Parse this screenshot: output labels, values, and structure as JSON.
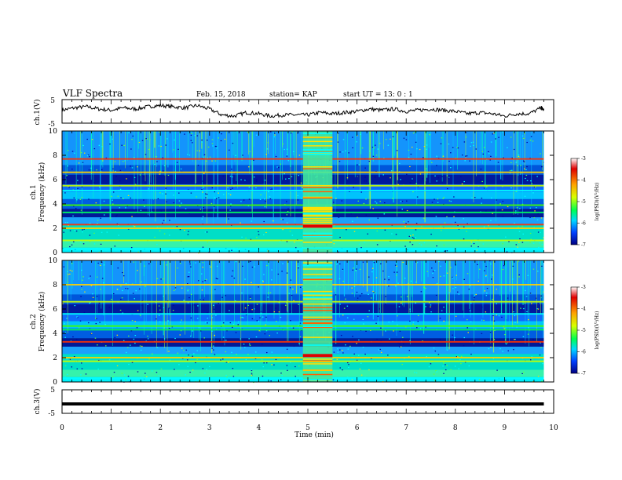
{
  "header": {
    "title": "VLF Spectra",
    "date": "Feb. 15, 2018",
    "station": "station= KAP",
    "start": "start  UT =   13: 0  : 1"
  },
  "colors": {
    "spectrum_scale": [
      "#00007a",
      "#0000ff",
      "#0080ff",
      "#00e0e0",
      "#00ff40",
      "#e0ff00",
      "#ffd000",
      "#ff4000",
      "#cc0000",
      "#ffffff"
    ]
  },
  "chart_data": [
    {
      "type": "line",
      "name": "ch1-voltage",
      "ylabel": "ch.1(V)",
      "ylim": [
        -5,
        5
      ],
      "yticks": [
        "5",
        "-5"
      ],
      "xlim": [
        0,
        10
      ],
      "note_values": "approximate fluctuating waveform around ~0 V",
      "x": [
        0,
        0.25,
        0.5,
        0.75,
        1.0,
        1.25,
        1.5,
        1.75,
        2.0,
        2.25,
        2.5,
        2.75,
        3.0,
        3.25,
        3.5,
        3.75,
        4.0,
        4.25,
        4.5,
        4.75,
        5.0,
        5.25,
        5.5,
        5.75,
        6.0,
        6.25,
        6.5,
        6.75,
        7.0,
        7.25,
        7.5,
        7.75,
        8.0,
        8.25,
        8.5,
        8.75,
        9.0,
        9.25,
        9.5,
        9.75,
        9.8
      ],
      "y": [
        0.5,
        1.5,
        2.0,
        1.0,
        0.5,
        1.5,
        1.0,
        2.0,
        2.5,
        2.0,
        1.5,
        2.5,
        1.0,
        -1.5,
        -2.0,
        -0.5,
        -1.0,
        -2.0,
        -1.5,
        -1.5,
        -1.5,
        -0.5,
        -1.0,
        -0.5,
        0.0,
        1.0,
        0.5,
        1.0,
        0.0,
        0.5,
        1.0,
        0.5,
        0.0,
        -1.0,
        -0.5,
        -1.0,
        -2.0,
        -1.0,
        -1.0,
        1.5,
        0.5
      ]
    },
    {
      "type": "heatmap",
      "name": "ch1-spectrogram",
      "ylabel_line1": "ch.1",
      "ylabel_line2": "Frequency (kHz)",
      "ylim": [
        0,
        10
      ],
      "yticks": [
        "0",
        "2",
        "4",
        "6",
        "8",
        "10"
      ],
      "xlim": [
        0,
        10
      ],
      "colorbar": {
        "label": "log(PSD)(V²/Hz)",
        "range": [
          -7,
          -3
        ],
        "ticks": [
          "-3",
          "-4",
          "-5",
          "-6",
          "-7"
        ]
      },
      "burst": {
        "x_start": 4.9,
        "x_end": 5.5
      },
      "bands_khz": [
        0.3,
        1.0,
        2.0,
        2.3,
        3.3,
        3.9,
        5.1,
        5.5,
        6.6,
        7.7
      ]
    },
    {
      "type": "heatmap",
      "name": "ch2-spectrogram",
      "ylabel_line1": "ch.2",
      "ylabel_line2": "Frequency (kHz)",
      "ylim": [
        0,
        10
      ],
      "yticks": [
        "0",
        "2",
        "4",
        "6",
        "8",
        "10"
      ],
      "xlim": [
        0,
        10
      ],
      "colorbar": {
        "label": "log(PSD)(V²/Hz)",
        "range": [
          -7,
          -3
        ],
        "ticks": [
          "-3",
          "-4",
          "-5",
          "-6",
          "-7"
        ]
      },
      "burst": {
        "x_start": 4.9,
        "x_end": 5.5
      },
      "bands_khz": [
        0.3,
        1.7,
        2.0,
        3.3,
        4.3,
        4.6,
        5.6,
        6.6,
        8.0
      ]
    },
    {
      "type": "line",
      "name": "ch3-voltage",
      "ylabel": "ch.3(V)",
      "ylim": [
        -5,
        5
      ],
      "yticks": [
        "5",
        "-5"
      ],
      "xlim": [
        0,
        10
      ],
      "xlabel": "Time (min)",
      "xticks": [
        "0",
        "1",
        "2",
        "3",
        "4",
        "5",
        "6",
        "7",
        "8",
        "9",
        "10"
      ],
      "x": [
        0,
        9.8
      ],
      "y": [
        -1.0,
        -1.0
      ]
    }
  ]
}
